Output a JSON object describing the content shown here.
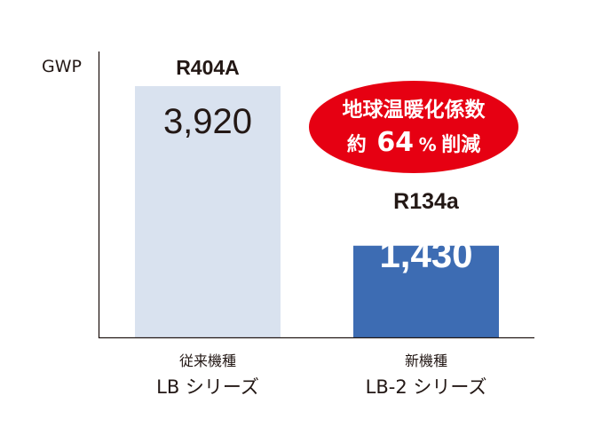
{
  "chart_data": {
    "type": "bar",
    "ylabel": "GWP",
    "ylim": [
      0,
      4500
    ],
    "grid": false,
    "bars": [
      {
        "series_label": "R404A",
        "value": 3920,
        "value_label": "3,920",
        "category_line1": "従来機種",
        "category_line2": "LB シリーズ",
        "color": "#d9e2ef",
        "value_color": "#231815"
      },
      {
        "series_label": "R134a",
        "value": 1430,
        "value_label": "1,430",
        "category_line1": "新機種",
        "category_line2": "LB-2 シリーズ",
        "color": "#3d6cb3",
        "value_color": "#ffffff"
      }
    ],
    "annotation": {
      "line1": "地球温暖化係数",
      "line2_prefix": "約",
      "line2_number": "64",
      "line2_unit": "%",
      "line2_suffix": "削減",
      "color": "#e60012",
      "text_color": "#ffffff"
    }
  }
}
